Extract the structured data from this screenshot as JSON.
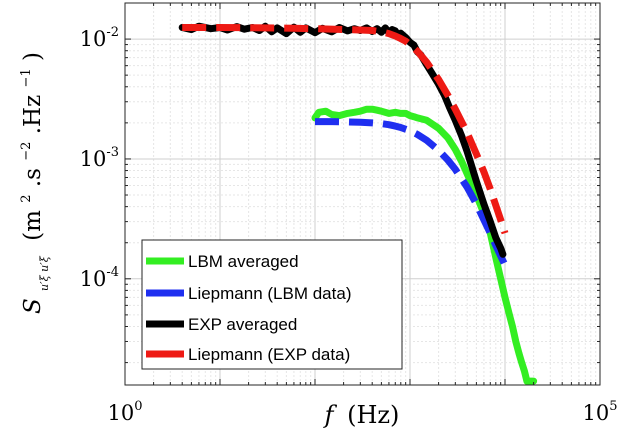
{
  "chart_data": {
    "type": "line",
    "title": "",
    "xscale": "log",
    "yscale": "log",
    "xlim": [
      1,
      100000
    ],
    "ylim": [
      1.3e-05,
      0.02
    ],
    "xlabel": {
      "symbol": "f",
      "unit": "(Hz)"
    },
    "ylabel": {
      "symbol": "S",
      "subscript": "u′ξ u′ξ",
      "unit_open": "(m",
      "sup1": "2",
      "mid": ".s",
      "sup2": "−2",
      "mid2": ".Hz",
      "sup3": "−1",
      "unit_close": ")"
    },
    "xticks": [
      {
        "value": 1,
        "base": "10",
        "exp": "0"
      },
      {
        "value": 100000,
        "base": "10",
        "exp": "5"
      }
    ],
    "yticks": [
      {
        "value": 0.0001,
        "base": "10",
        "exp": "-4"
      },
      {
        "value": 0.001,
        "base": "10",
        "exp": "-3"
      },
      {
        "value": 0.01,
        "base": "10",
        "exp": "-2"
      }
    ],
    "grid": true,
    "minor_grid": true,
    "legend_position": "bottom-left",
    "series": [
      {
        "name": "LBM averaged",
        "color": "#33ee22",
        "style": "solid",
        "x": [
          100,
          110,
          130,
          150,
          180,
          220,
          260,
          300,
          350,
          400,
          450,
          500,
          600,
          700,
          800,
          900,
          1000,
          1100,
          1200,
          1500,
          2000,
          2500,
          3000,
          3500,
          4000,
          5000,
          6000,
          7000,
          8000,
          9000,
          10000,
          11000,
          12000,
          13000,
          14000,
          15000,
          16000,
          17000,
          18000,
          20000
        ],
        "y": [
          0.0022,
          0.00245,
          0.0025,
          0.00235,
          0.0023,
          0.0024,
          0.00245,
          0.0025,
          0.0026,
          0.0026,
          0.00255,
          0.0025,
          0.0024,
          0.00245,
          0.0024,
          0.0024,
          0.0023,
          0.00225,
          0.0022,
          0.0021,
          0.0018,
          0.0015,
          0.0012,
          0.00095,
          0.00075,
          0.0005,
          0.00035,
          0.00024,
          0.00015,
          0.0001,
          7e-05,
          5.2e-05,
          4e-05,
          3e-05,
          2.4e-05,
          2e-05,
          1.7e-05,
          1.4e-05,
          1.4e-05,
          1.4e-05
        ]
      },
      {
        "name": "Liepmann (LBM data)",
        "color": "#1f2ff0",
        "style": "dashed",
        "x": [
          100,
          150,
          200,
          300,
          400,
          500,
          600,
          700,
          800,
          1000,
          1200,
          1500,
          2000,
          2500,
          3000,
          4000,
          5000,
          6000,
          7000,
          8000,
          9000,
          10000
        ],
        "y": [
          0.00205,
          0.00205,
          0.00204,
          0.00202,
          0.002,
          0.00197,
          0.00193,
          0.00188,
          0.00183,
          0.00172,
          0.0016,
          0.00143,
          0.00118,
          0.00098,
          0.00082,
          0.00058,
          0.00042,
          0.00031,
          0.00024,
          0.00019,
          0.000155,
          0.00013
        ]
      },
      {
        "name": "EXP averaged",
        "color": "#000000",
        "style": "solid",
        "x": [
          4,
          5,
          6,
          8,
          10,
          12,
          15,
          18,
          22,
          26,
          30,
          35,
          40,
          50,
          60,
          70,
          80,
          100,
          120,
          150,
          180,
          220,
          260,
          300,
          350,
          400,
          450,
          500,
          550,
          600,
          650,
          700,
          750,
          800,
          900,
          1000,
          1100,
          1200,
          1300,
          1500,
          1700,
          2000,
          2300,
          2600,
          3000,
          3500,
          4000,
          4500,
          5000,
          6000,
          7000,
          8000,
          9000,
          9500
        ],
        "y": [
          0.0125,
          0.012,
          0.0128,
          0.0122,
          0.0125,
          0.0119,
          0.0127,
          0.0121,
          0.0125,
          0.0118,
          0.0128,
          0.0115,
          0.0124,
          0.0111,
          0.0126,
          0.0114,
          0.0124,
          0.0113,
          0.0123,
          0.0115,
          0.0125,
          0.0117,
          0.0122,
          0.0118,
          0.0124,
          0.0116,
          0.0122,
          0.0114,
          0.0124,
          0.0113,
          0.012,
          0.0117,
          0.0108,
          0.0112,
          0.0103,
          0.0094,
          0.0089,
          0.0078,
          0.0074,
          0.0061,
          0.0052,
          0.0042,
          0.0034,
          0.0027,
          0.0021,
          0.00155,
          0.00115,
          0.00085,
          0.00065,
          0.00042,
          0.0003,
          0.00022,
          0.00018,
          0.00016
        ]
      },
      {
        "name": "Liepmann (EXP data)",
        "color": "#ee1a14",
        "style": "dashed",
        "x": [
          4,
          10,
          30,
          60,
          100,
          200,
          300,
          400,
          500,
          600,
          700,
          800,
          900,
          1000,
          1200,
          1500,
          2000,
          2500,
          3000,
          4000,
          5000,
          6000,
          7000,
          8000,
          9000,
          10000
        ],
        "y": [
          0.0125,
          0.0125,
          0.0124,
          0.0123,
          0.0122,
          0.012,
          0.0119,
          0.0118,
          0.0115,
          0.0111,
          0.0106,
          0.0101,
          0.0096,
          0.009,
          0.0079,
          0.0064,
          0.0046,
          0.0034,
          0.0026,
          0.00165,
          0.0011,
          0.00078,
          0.00056,
          0.00041,
          0.00031,
          0.00024
        ]
      }
    ]
  }
}
